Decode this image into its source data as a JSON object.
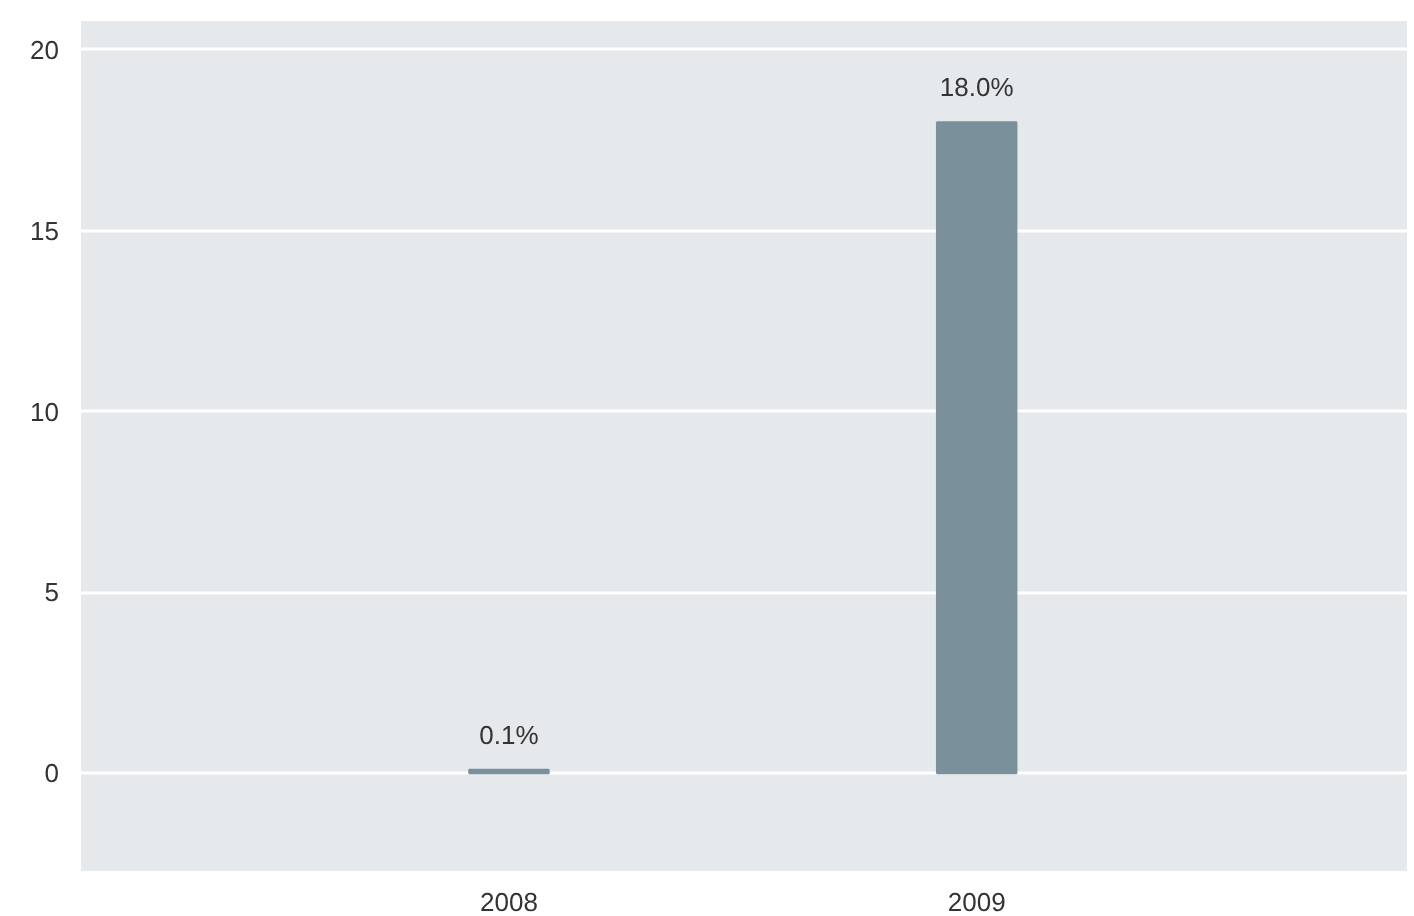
{
  "chart_data": {
    "type": "bar",
    "categories": [
      "2008",
      "2009"
    ],
    "values": [
      0.1,
      18.0
    ],
    "value_labels": [
      "0.1%",
      "18.0%"
    ],
    "color": "#7a919b",
    "ylim": [
      -2.7,
      20.8
    ],
    "yticks": [
      0,
      5,
      10,
      15,
      20
    ],
    "grid": "y"
  }
}
